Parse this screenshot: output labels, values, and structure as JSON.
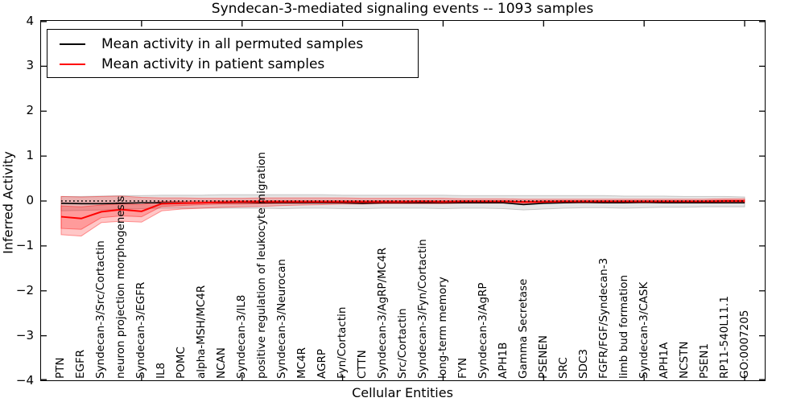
{
  "title": "Syndecan-3-mediated signaling events -- 1093 samples",
  "colors": {
    "permuted_line": "#000000",
    "patient_line": "#ff0000",
    "permuted_band_fill": "rgba(0,0,0,0.10)",
    "permuted_band_edge": "rgba(0,0,0,0.18)",
    "patient_band_fill": "rgba(255,0,0,0.22)",
    "patient_band_edge": "rgba(255,0,0,0.38)",
    "zero_line": "#000000"
  },
  "legend": {
    "items": [
      {
        "label": "Mean activity in all permuted samples",
        "color": "#000000",
        "thickness": 2
      },
      {
        "label": "Mean activity in patient samples",
        "color": "#ff0000",
        "thickness": 2
      }
    ]
  },
  "chart_data": {
    "type": "line",
    "title": "Syndecan-3-mediated signaling events -- 1093 samples",
    "xlabel": "Cellular Entities",
    "ylabel": "Inferred Activity",
    "ylim": [
      -4,
      4
    ],
    "xlim": [
      0,
      36
    ],
    "x_positions": "categories at x = 1..35",
    "ytick_values": [
      4,
      3,
      2,
      1,
      0,
      -1,
      -2,
      -3,
      -4
    ],
    "ytick_labels": [
      "4",
      "3",
      "2",
      "1",
      "0",
      "−1",
      "−2",
      "−3",
      "−4"
    ],
    "xtick_values": [
      5,
      10,
      15,
      20,
      25,
      30,
      35
    ],
    "grid": false,
    "legend_position": "upper left",
    "zero_reference_line": {
      "value": 0,
      "style": "dotted",
      "color": "#000000"
    },
    "categories": [
      "PTN",
      "EGFR",
      "Syndecan-3/Src/Cortactin",
      "neuron projection morphogenesis",
      "Syndecan-3/EGFR",
      "IL8",
      "POMC",
      "alpha-MSH/MC4R",
      "NCAN",
      "Syndecan-3/IL8",
      "positive regulation of leukocyte migration",
      "Syndecan-3/Neurocan",
      "MC4R",
      "AGRP",
      "Fyn/Cortactin",
      "CTTN",
      "Syndecan-3/AgRP/MC4R",
      "Src/Cortactin",
      "Syndecan-3/Fyn/Cortactin",
      "long-term memory",
      "FYN",
      "Syndecan-3/AgRP",
      "APH1B",
      "Gamma Secretase",
      "PSENEN",
      "SRC",
      "SDC3",
      "FGFR/FGF/Syndecan-3",
      "limb bud formation",
      "Syndecan-3/CASK",
      "APH1A",
      "NCSTN",
      "PSEN1",
      "RP11-540L11.1",
      "GO:0007205"
    ],
    "series": [
      {
        "name": "Mean activity in all permuted samples",
        "color": "#000000",
        "values": [
          -0.05,
          -0.06,
          -0.06,
          -0.05,
          -0.04,
          -0.04,
          -0.04,
          -0.04,
          -0.04,
          -0.03,
          -0.04,
          -0.04,
          -0.04,
          -0.04,
          -0.04,
          -0.05,
          -0.04,
          -0.04,
          -0.04,
          -0.04,
          -0.04,
          -0.04,
          -0.04,
          -0.08,
          -0.05,
          -0.04,
          -0.03,
          -0.04,
          -0.04,
          -0.03,
          -0.04,
          -0.04,
          -0.04,
          -0.04,
          -0.04
        ]
      },
      {
        "name": "Mean activity in patient samples",
        "color": "#ff0000",
        "values": [
          -0.35,
          -0.39,
          -0.24,
          -0.19,
          -0.23,
          -0.06,
          -0.05,
          -0.04,
          -0.03,
          -0.02,
          -0.02,
          -0.02,
          -0.02,
          -0.02,
          -0.02,
          -0.02,
          -0.02,
          -0.02,
          -0.01,
          -0.02,
          -0.01,
          -0.01,
          -0.01,
          -0.02,
          -0.02,
          -0.01,
          -0.01,
          -0.01,
          -0.01,
          -0.01,
          -0.01,
          -0.01,
          -0.01,
          0.0,
          0.0
        ]
      }
    ],
    "bands": [
      {
        "name": "permuted samples range",
        "color_key": "permuted_band_fill",
        "lo": [
          -0.22,
          -0.21,
          -0.2,
          -0.18,
          -0.17,
          -0.16,
          -0.16,
          -0.16,
          -0.16,
          -0.16,
          -0.16,
          -0.17,
          -0.16,
          -0.16,
          -0.17,
          -0.17,
          -0.16,
          -0.16,
          -0.16,
          -0.17,
          -0.16,
          -0.16,
          -0.17,
          -0.2,
          -0.18,
          -0.16,
          -0.15,
          -0.15,
          -0.16,
          -0.15,
          -0.14,
          -0.14,
          -0.13,
          -0.13,
          -0.13
        ],
        "hi": [
          0.1,
          0.1,
          0.11,
          0.12,
          0.12,
          0.13,
          0.13,
          0.13,
          0.14,
          0.14,
          0.14,
          0.14,
          0.14,
          0.14,
          0.13,
          0.13,
          0.13,
          0.13,
          0.13,
          0.13,
          0.12,
          0.12,
          0.12,
          0.12,
          0.12,
          0.12,
          0.12,
          0.12,
          0.11,
          0.11,
          0.11,
          0.1,
          0.1,
          0.1,
          0.09
        ]
      },
      {
        "name": "patient samples outer band",
        "color_key": "patient_band_fill",
        "lo": [
          -0.75,
          -0.78,
          -0.48,
          -0.45,
          -0.47,
          -0.22,
          -0.18,
          -0.16,
          -0.14,
          -0.13,
          -0.12,
          -0.1,
          -0.09,
          -0.08,
          -0.07,
          -0.07,
          -0.06,
          -0.06,
          -0.06,
          -0.06,
          -0.05,
          -0.05,
          -0.05,
          -0.06,
          -0.05,
          -0.04,
          -0.04,
          -0.04,
          -0.04,
          -0.04,
          -0.04,
          -0.04,
          -0.04,
          -0.04,
          -0.04
        ],
        "hi": [
          0.1,
          0.09,
          0.1,
          0.11,
          0.08,
          0.07,
          0.07,
          0.06,
          0.06,
          0.06,
          0.07,
          0.07,
          0.07,
          0.07,
          0.07,
          0.06,
          0.06,
          0.06,
          0.06,
          0.06,
          0.05,
          0.05,
          0.05,
          0.04,
          0.04,
          0.04,
          0.04,
          0.04,
          0.04,
          0.04,
          0.04,
          0.04,
          0.04,
          0.05,
          0.05
        ]
      },
      {
        "name": "patient samples inner band",
        "color_key": "patient_band_fill",
        "lo": [
          -0.61,
          -0.63,
          -0.37,
          -0.33,
          -0.35,
          -0.12,
          -0.1,
          -0.08,
          -0.07,
          -0.07,
          -0.06,
          -0.05,
          -0.05,
          -0.04,
          -0.04,
          -0.04,
          -0.04,
          -0.03,
          -0.03,
          -0.03,
          -0.03,
          -0.03,
          -0.03,
          -0.04,
          -0.03,
          -0.03,
          -0.02,
          -0.02,
          -0.02,
          -0.02,
          -0.02,
          -0.02,
          -0.02,
          -0.02,
          -0.02
        ],
        "hi": [
          -0.11,
          -0.13,
          -0.09,
          -0.06,
          -0.08,
          -0.01,
          -0.01,
          0.0,
          0.0,
          0.01,
          0.01,
          0.01,
          0.01,
          0.01,
          0.01,
          0.01,
          0.01,
          0.01,
          0.01,
          0.01,
          0.01,
          0.01,
          0.01,
          0.0,
          0.01,
          0.01,
          0.01,
          0.01,
          0.01,
          0.01,
          0.01,
          0.01,
          0.01,
          0.02,
          0.02
        ]
      }
    ]
  }
}
